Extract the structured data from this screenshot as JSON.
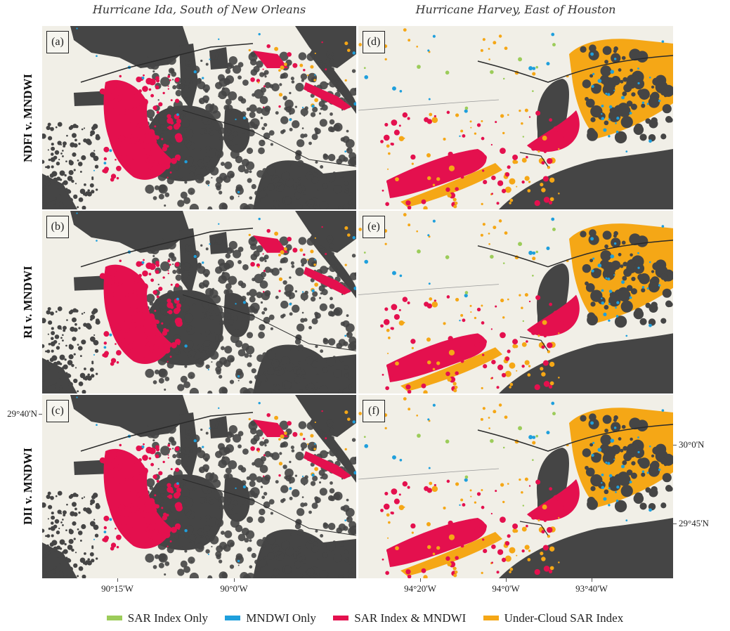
{
  "columns": [
    "Hurricane Ida, South of New Orleans",
    "Hurricane Harvey, East of Houston"
  ],
  "rows": [
    "NDFI v. MNDWI",
    "RI v. MNDWI",
    "DII v. MNDWI"
  ],
  "panels": [
    {
      "label": "(a)",
      "region": "ida"
    },
    {
      "label": "(d)",
      "region": "harvey"
    },
    {
      "label": "(b)",
      "region": "ida"
    },
    {
      "label": "(e)",
      "region": "harvey"
    },
    {
      "label": "(c)",
      "region": "ida"
    },
    {
      "label": "(f)",
      "region": "harvey"
    }
  ],
  "axes": {
    "ida_x_ticks": [
      "90°15'W",
      "90°0'W"
    ],
    "harvey_x_ticks": [
      "94°20'W",
      "94°0'W",
      "93°40'W"
    ],
    "ida_y_ticks": [
      "29°40'N"
    ],
    "harvey_y_ticks": [
      "30°0'N",
      "29°45'N"
    ]
  },
  "legend": [
    {
      "label": "SAR Index Only",
      "color": "#9ccc5a"
    },
    {
      "label": "MNDWI Only",
      "color": "#1f9fdc"
    },
    {
      "label": "SAR Index & MNDWI",
      "color": "#e4104e"
    },
    {
      "label": "Under-Cloud SAR Index",
      "color": "#f5a716"
    }
  ],
  "colors": {
    "land": "#f1efe7",
    "water": "#454545",
    "road": "#2a2a2a"
  }
}
